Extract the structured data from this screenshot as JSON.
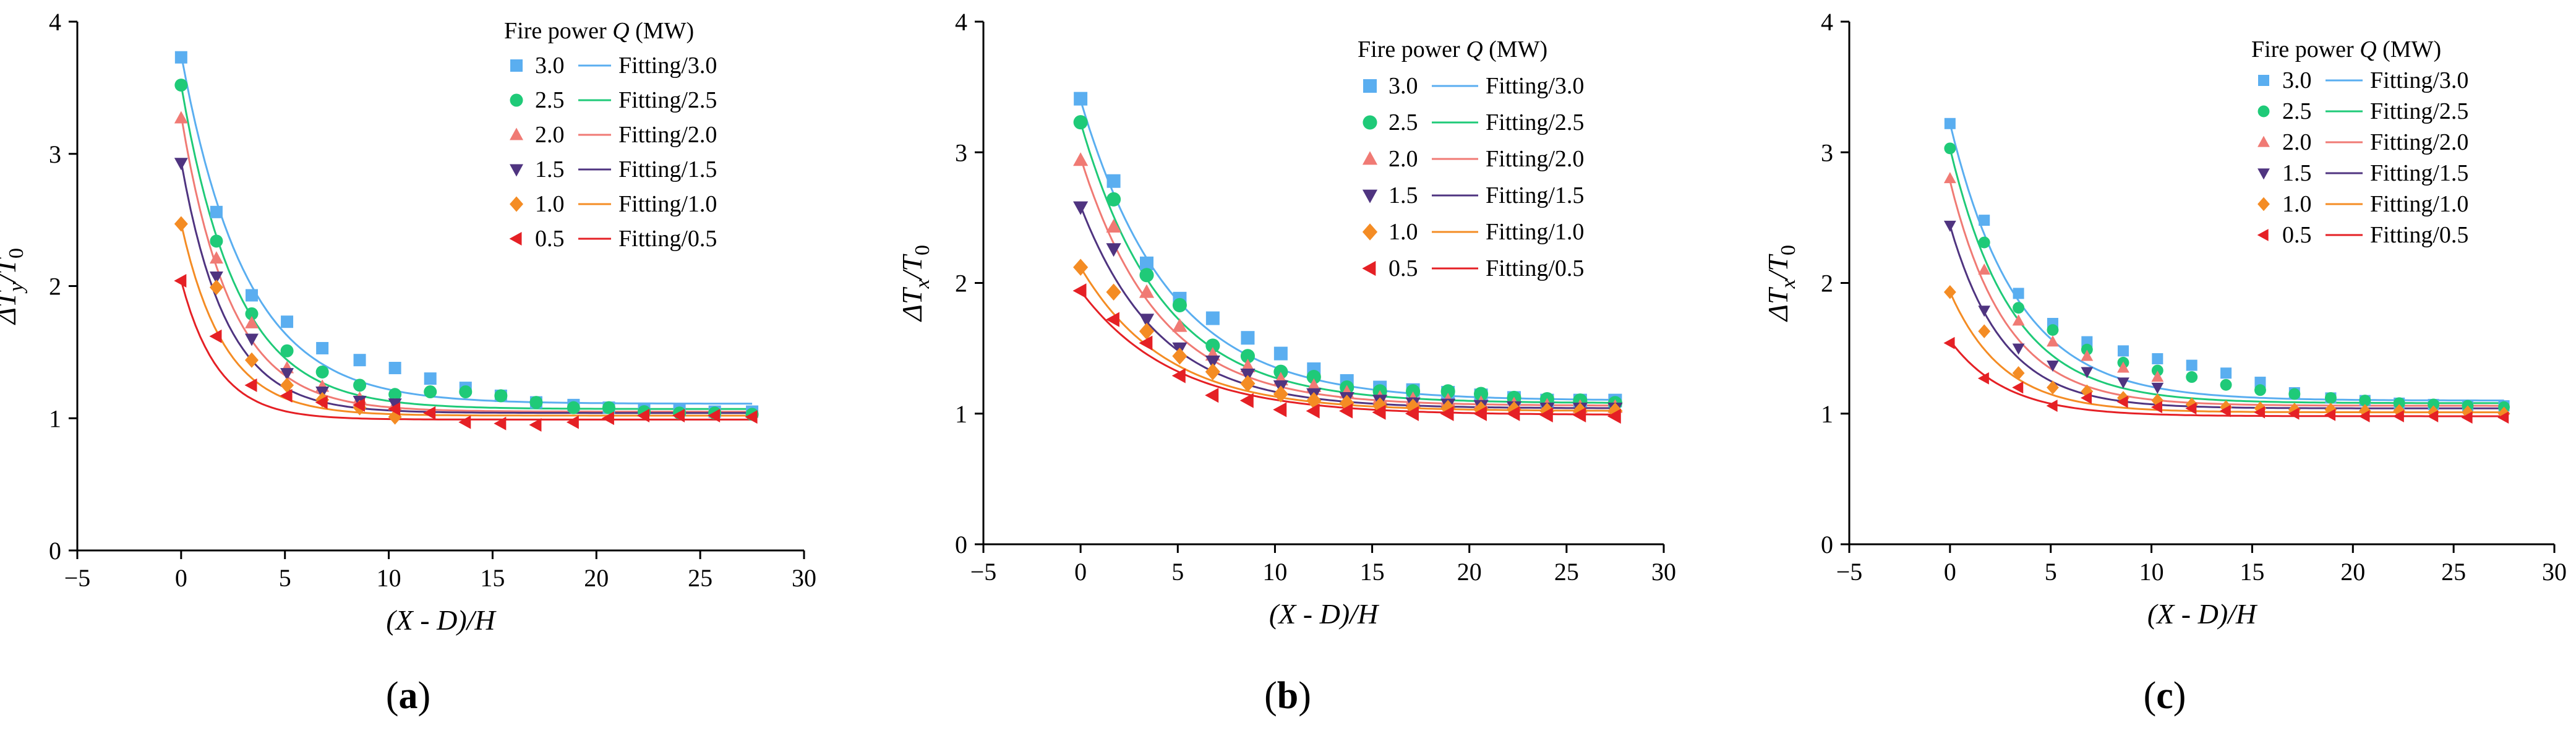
{
  "colors": {
    "3.0": "#5aaef0",
    "2.5": "#1fca78",
    "2.0": "#f07a74",
    "1.5": "#4f3480",
    "1.0": "#f48c24",
    "0.5": "#e52025"
  },
  "markers": {
    "3.0": "square",
    "2.5": "circle",
    "2.0": "triangle-up",
    "1.5": "triangle-down",
    "1.0": "diamond",
    "0.5": "triangle-left"
  },
  "chart_data": [
    {
      "id": "a",
      "type": "scatter",
      "panel_label": "a",
      "xlabel": "(X - D)/H",
      "ylabel": "ΔTy/T0",
      "ylabel_main": "ΔT",
      "ylabel_sub1": "y",
      "ylabel_slash": "/T",
      "ylabel_sub2": "0",
      "xlim": [
        -5,
        30
      ],
      "ylim": [
        0,
        4
      ],
      "xticks": [
        "−5",
        "0",
        "5",
        "10",
        "15",
        "20",
        "25",
        "30"
      ],
      "xtick_values": [
        -5,
        0,
        5,
        10,
        15,
        20,
        25,
        30
      ],
      "yticks": [
        "0",
        "1",
        "2",
        "3",
        "4"
      ],
      "ytick_values": [
        0,
        1,
        2,
        3,
        4
      ],
      "legend_title": "Fire power Q (MW)",
      "legend_title_parts": [
        "Fire power ",
        "Q",
        " (MW)"
      ],
      "series": [
        {
          "name": "3.0",
          "fit_label": "Fitting/3.0",
          "x": [
            0,
            1.7,
            3.4,
            5.1,
            6.8,
            8.6,
            10.3,
            12.0,
            13.7,
            15.4,
            17.1,
            18.9,
            20.6,
            22.3,
            24.0,
            25.7,
            27.5
          ],
          "y": [
            3.73,
            2.56,
            1.93,
            1.73,
            1.53,
            1.44,
            1.38,
            1.3,
            1.23,
            1.17,
            1.12,
            1.1,
            1.08,
            1.07,
            1.06,
            1.05,
            1.05
          ],
          "fit": {
            "a": 2.64,
            "k": 0.32,
            "c": 1.11
          }
        },
        {
          "name": "2.5",
          "fit_label": "Fitting/2.5",
          "x": [
            0,
            1.7,
            3.4,
            5.1,
            6.8,
            8.6,
            10.3,
            12.0,
            13.7,
            15.4,
            17.1,
            18.9,
            20.6,
            22.3,
            24.0,
            25.7,
            27.5
          ],
          "y": [
            3.52,
            2.34,
            1.79,
            1.51,
            1.35,
            1.25,
            1.18,
            1.2,
            1.2,
            1.17,
            1.12,
            1.08,
            1.08,
            1.05,
            1.04,
            1.04,
            1.03
          ],
          "fit": {
            "a": 2.45,
            "k": 0.37,
            "c": 1.07
          }
        },
        {
          "name": "2.0",
          "fit_label": "Fitting/2.0",
          "x": [
            0,
            1.7,
            3.4,
            5.1,
            6.8,
            8.6,
            10.3
          ],
          "y": [
            3.27,
            2.21,
            1.72,
            1.38,
            1.24,
            1.15,
            1.1
          ],
          "fit": {
            "a": 2.24,
            "k": 0.42,
            "c": 1.05
          }
        },
        {
          "name": "1.5",
          "fit_label": "Fitting/1.5",
          "x": [
            0,
            1.7,
            3.4,
            5.1,
            6.8,
            8.6,
            10.3
          ],
          "y": [
            2.93,
            2.07,
            1.6,
            1.34,
            1.2,
            1.13,
            1.11
          ],
          "fit": {
            "a": 1.9,
            "k": 0.46,
            "c": 1.04
          }
        },
        {
          "name": "1.0",
          "fit_label": "Fitting/1.0",
          "x": [
            0,
            1.7,
            3.4,
            5.1,
            6.8,
            8.6,
            10.3
          ],
          "y": [
            2.47,
            1.99,
            1.44,
            1.25,
            1.14,
            1.08,
            1.01
          ],
          "fit": {
            "a": 1.45,
            "k": 0.48,
            "c": 1.02
          }
        },
        {
          "name": "0.5",
          "fit_label": "Fitting/0.5",
          "x": [
            0,
            1.7,
            3.4,
            5.1,
            6.8,
            8.6,
            10.3,
            12.0,
            13.7,
            15.4,
            17.1,
            18.9,
            20.6,
            22.3,
            24.0,
            25.7,
            27.5
          ],
          "y": [
            2.04,
            1.62,
            1.25,
            1.17,
            1.12,
            1.1,
            1.07,
            1.04,
            0.97,
            0.96,
            0.95,
            0.97,
            1.0,
            1.02,
            1.02,
            1.02,
            1.01
          ],
          "fit": {
            "a": 1.05,
            "k": 0.56,
            "c": 0.99
          }
        }
      ]
    },
    {
      "id": "b",
      "type": "scatter",
      "panel_label": "b",
      "xlabel": "(X - D)/H",
      "ylabel": "ΔTx/T0",
      "ylabel_main": "ΔT",
      "ylabel_sub1": "x",
      "ylabel_slash": "/T",
      "ylabel_sub2": "0",
      "xlim": [
        -5,
        30
      ],
      "ylim": [
        0,
        4
      ],
      "xticks": [
        "−5",
        "0",
        "5",
        "10",
        "15",
        "20",
        "25",
        "30"
      ],
      "xtick_values": [
        -5,
        0,
        5,
        10,
        15,
        20,
        25,
        30
      ],
      "yticks": [
        "0",
        "1",
        "2",
        "3",
        "4"
      ],
      "ytick_values": [
        0,
        1,
        2,
        3,
        4
      ],
      "legend_title": "Fire power Q (MW)",
      "legend_title_parts": [
        "Fire power ",
        "Q",
        " (MW)"
      ],
      "series": [
        {
          "name": "3.0",
          "fit_label": "Fitting/3.0",
          "x": [
            0,
            1.7,
            3.4,
            5.1,
            6.8,
            8.6,
            10.3,
            12.0,
            13.7,
            15.4,
            17.1,
            18.9,
            20.6,
            22.3,
            24.0,
            25.7,
            27.5
          ],
          "y": [
            3.41,
            2.78,
            2.15,
            1.88,
            1.73,
            1.58,
            1.46,
            1.34,
            1.25,
            1.2,
            1.18,
            1.16,
            1.14,
            1.12,
            1.1,
            1.1,
            1.1
          ],
          "fit": {
            "a": 2.3,
            "k": 0.22,
            "c": 1.1
          }
        },
        {
          "name": "2.5",
          "fit_label": "Fitting/2.5",
          "x": [
            0,
            1.7,
            3.4,
            5.1,
            6.8,
            8.6,
            10.3,
            12.0,
            13.7,
            15.4,
            17.1,
            18.9,
            20.6,
            22.3,
            24.0,
            25.7,
            27.5
          ],
          "y": [
            3.23,
            2.64,
            2.06,
            1.83,
            1.52,
            1.44,
            1.32,
            1.28,
            1.2,
            1.17,
            1.17,
            1.17,
            1.15,
            1.12,
            1.11,
            1.1,
            1.08
          ],
          "fit": {
            "a": 2.15,
            "k": 0.24,
            "c": 1.08
          }
        },
        {
          "name": "2.0",
          "fit_label": "Fitting/2.0",
          "x": [
            0,
            1.7,
            3.4,
            5.1,
            6.8,
            8.6,
            10.3,
            12.0,
            13.7,
            15.4,
            17.1,
            18.9,
            20.6,
            22.3,
            24.0,
            25.7,
            27.5
          ],
          "y": [
            2.94,
            2.43,
            1.93,
            1.67,
            1.45,
            1.36,
            1.26,
            1.21,
            1.16,
            1.12,
            1.11,
            1.1,
            1.08,
            1.07,
            1.06,
            1.05,
            1.05
          ],
          "fit": {
            "a": 1.9,
            "k": 0.25,
            "c": 1.06
          }
        },
        {
          "name": "1.5",
          "fit_label": "Fitting/1.5",
          "x": [
            0,
            1.7,
            3.4,
            5.1,
            6.8,
            8.6,
            10.3,
            12.0,
            13.7,
            15.4,
            17.1,
            18.9,
            20.6,
            22.3,
            24.0,
            25.7,
            27.5
          ],
          "y": [
            2.58,
            2.26,
            1.72,
            1.5,
            1.4,
            1.3,
            1.21,
            1.15,
            1.12,
            1.1,
            1.08,
            1.07,
            1.06,
            1.05,
            1.04,
            1.04,
            1.04
          ],
          "fit": {
            "a": 1.55,
            "k": 0.25,
            "c": 1.04
          }
        },
        {
          "name": "1.0",
          "fit_label": "Fitting/1.0",
          "x": [
            0,
            1.7,
            3.4,
            5.1,
            6.8,
            8.6,
            10.3,
            12.0,
            13.7,
            15.4,
            17.1,
            18.9,
            20.6,
            22.3,
            24.0,
            25.7,
            27.5
          ],
          "y": [
            2.12,
            1.93,
            1.63,
            1.44,
            1.32,
            1.23,
            1.15,
            1.1,
            1.08,
            1.06,
            1.05,
            1.04,
            1.03,
            1.03,
            1.02,
            1.02,
            1.02
          ],
          "fit": {
            "a": 1.1,
            "k": 0.23,
            "c": 1.02
          }
        },
        {
          "name": "0.5",
          "fit_label": "Fitting/0.5",
          "x": [
            0,
            1.7,
            3.4,
            5.1,
            6.8,
            8.6,
            10.3,
            12.0,
            13.7,
            15.4,
            17.1,
            18.9,
            20.6,
            22.3,
            24.0,
            25.7,
            27.5
          ],
          "y": [
            1.94,
            1.72,
            1.54,
            1.29,
            1.14,
            1.1,
            1.03,
            1.02,
            1.02,
            1.01,
            1.0,
            1.0,
            1.0,
            1.0,
            0.99,
            0.99,
            0.98
          ],
          "fit": {
            "a": 0.95,
            "k": 0.21,
            "c": 0.99
          }
        }
      ]
    },
    {
      "id": "c",
      "type": "scatter",
      "panel_label": "c",
      "xlabel": "(X - D)/H",
      "ylabel": "ΔTx/T0",
      "ylabel_main": "ΔT",
      "ylabel_sub1": "x",
      "ylabel_slash": "/T",
      "ylabel_sub2": "0",
      "xlim": [
        -5,
        30
      ],
      "ylim": [
        0,
        4
      ],
      "xticks": [
        "−5",
        "0",
        "5",
        "10",
        "15",
        "20",
        "25",
        "30"
      ],
      "xtick_values": [
        -5,
        0,
        5,
        10,
        15,
        20,
        25,
        30
      ],
      "yticks": [
        "0",
        "1",
        "2",
        "3",
        "4"
      ],
      "ytick_values": [
        0,
        1,
        2,
        3,
        4
      ],
      "legend_title": "Fire power Q (MW)",
      "legend_title_parts": [
        "Fire power ",
        "Q",
        " (MW)"
      ],
      "series": [
        {
          "name": "3.0",
          "fit_label": "Fitting/3.0",
          "x": [
            0,
            1.7,
            3.4,
            5.1,
            6.8,
            8.6,
            10.3,
            12.0,
            13.7,
            15.4,
            17.1,
            18.9,
            20.6,
            22.3,
            24.0,
            25.7,
            27.5
          ],
          "y": [
            3.22,
            2.48,
            1.92,
            1.69,
            1.55,
            1.48,
            1.42,
            1.37,
            1.31,
            1.24,
            1.16,
            1.12,
            1.1,
            1.08,
            1.07,
            1.06,
            1.06
          ],
          "fit": {
            "a": 2.12,
            "k": 0.3,
            "c": 1.1
          }
        },
        {
          "name": "2.5",
          "fit_label": "Fitting/2.5",
          "x": [
            0,
            1.7,
            3.4,
            5.1,
            6.8,
            8.6,
            10.3,
            12.0,
            13.7,
            15.4,
            17.1,
            18.9,
            20.6,
            22.3,
            24.0,
            25.7,
            27.5
          ],
          "y": [
            3.03,
            2.31,
            1.81,
            1.64,
            1.49,
            1.39,
            1.33,
            1.28,
            1.22,
            1.18,
            1.15,
            1.12,
            1.1,
            1.08,
            1.07,
            1.06,
            1.05
          ],
          "fit": {
            "a": 1.95,
            "k": 0.33,
            "c": 1.08
          }
        },
        {
          "name": "2.0",
          "fit_label": "Fitting/2.0",
          "x": [
            0,
            1.7,
            3.4,
            5.1,
            6.8,
            8.6,
            10.3
          ],
          "y": [
            2.8,
            2.1,
            1.71,
            1.55,
            1.44,
            1.35,
            1.28
          ],
          "fit": {
            "a": 1.72,
            "k": 0.36,
            "c": 1.06
          }
        },
        {
          "name": "1.5",
          "fit_label": "Fitting/1.5",
          "x": [
            0,
            1.7,
            3.4,
            5.1,
            6.8,
            8.6,
            10.3
          ],
          "y": [
            2.44,
            1.79,
            1.5,
            1.37,
            1.32,
            1.24,
            1.2
          ],
          "fit": {
            "a": 1.4,
            "k": 0.38,
            "c": 1.04
          }
        },
        {
          "name": "1.0",
          "fit_label": "Fitting/1.0",
          "x": [
            0,
            1.7,
            3.4,
            5.1,
            6.8,
            8.6,
            10.3,
            12.0,
            13.7,
            15.4,
            17.1,
            18.9,
            20.6,
            22.3,
            24.0,
            25.7,
            27.5
          ],
          "y": [
            1.93,
            1.63,
            1.31,
            1.2,
            1.17,
            1.12,
            1.1,
            1.07,
            1.05,
            1.04,
            1.03,
            1.03,
            1.02,
            1.02,
            1.01,
            1.01,
            1.0
          ],
          "fit": {
            "a": 0.92,
            "k": 0.38,
            "c": 1.01
          }
        },
        {
          "name": "0.5",
          "fit_label": "Fitting/0.5",
          "x": [
            0,
            1.7,
            3.4,
            5.1,
            6.8,
            8.6,
            10.3,
            12.0,
            13.7,
            15.4,
            17.1,
            18.9,
            20.6,
            22.3,
            24.0,
            25.7,
            27.5
          ],
          "y": [
            1.54,
            1.27,
            1.2,
            1.06,
            1.12,
            1.09,
            1.05,
            1.04,
            1.02,
            1.01,
            1.0,
            0.99,
            0.98,
            0.98,
            0.98,
            0.97,
            0.97
          ],
          "fit": {
            "a": 0.58,
            "k": 0.36,
            "c": 0.98
          }
        }
      ]
    }
  ]
}
